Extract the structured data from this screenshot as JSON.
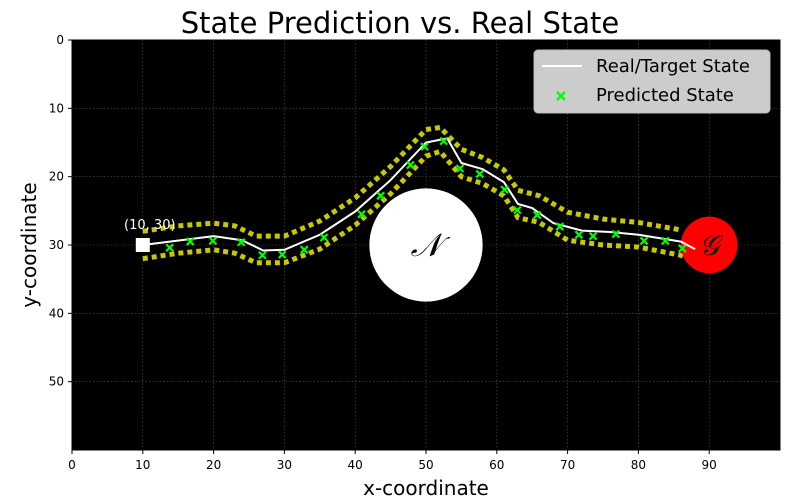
{
  "chart_data": {
    "type": "line",
    "title": "State Prediction vs. Real State",
    "xlabel": "x-coordinate",
    "ylabel": "y-coordinate",
    "xlim": [
      0,
      100
    ],
    "ylim": [
      60,
      0
    ],
    "x_ticks": [
      0,
      10,
      20,
      30,
      40,
      50,
      60,
      70,
      80,
      90
    ],
    "y_ticks": [
      0,
      10,
      20,
      30,
      40,
      50
    ],
    "grid": true,
    "legend": "top-right",
    "background": "#000000",
    "series": [
      {
        "name": "Real/Target State",
        "kind": "line",
        "color": "#ffffff",
        "x": [
          10,
          20,
          24,
          27,
          30,
          35,
          40,
          45,
          50,
          53,
          55,
          58,
          61,
          63,
          65,
          68,
          72,
          76,
          80,
          86,
          88
        ],
        "y": [
          30,
          28.7,
          29.3,
          30.8,
          30.7,
          28.5,
          25.1,
          20.5,
          15.0,
          14.4,
          18.0,
          18.9,
          20.8,
          24.0,
          24.6,
          26.8,
          27.9,
          28.1,
          28.5,
          29.5,
          30.6
        ]
      },
      {
        "name": "Predicted State",
        "kind": "scatter",
        "color": "#00ff00",
        "marker": "x",
        "x": [
          13.8,
          16.7,
          19.9,
          23.9,
          26.9,
          29.7,
          32.8,
          35.6,
          40.9,
          43.6,
          47.8,
          49.8,
          52.5,
          54.8,
          57.6,
          61.1,
          62.9,
          65.7,
          68.9,
          71.6,
          73.6,
          76.8,
          80.8,
          83.8,
          86.2
        ],
        "y": [
          30.4,
          29.5,
          29.4,
          29.6,
          31.5,
          31.4,
          30.7,
          28.9,
          25.5,
          22.8,
          18.3,
          15.6,
          14.8,
          18.8,
          19.6,
          21.9,
          24.9,
          25.6,
          27.3,
          28.5,
          28.7,
          28.4,
          29.4,
          29.4,
          30.5
        ]
      }
    ],
    "uncertainty_bounds": {
      "color": "#c8c800",
      "style": "dotted",
      "upper": {
        "x": [
          10,
          15,
          20,
          23,
          26,
          30,
          35,
          40,
          45,
          50,
          52,
          55,
          58,
          61,
          63,
          66,
          70,
          75,
          80,
          86
        ],
        "y": [
          28,
          27.2,
          26.8,
          27.2,
          28.7,
          28.7,
          26.5,
          23.1,
          18.5,
          13.1,
          12.8,
          16.0,
          17.2,
          19.0,
          22.0,
          22.8,
          25.2,
          26.2,
          26.7,
          27.8
        ]
      },
      "lower": {
        "x": [
          10,
          15,
          20,
          23,
          26,
          30,
          35,
          40,
          45,
          50,
          52,
          55,
          58,
          61,
          63,
          66,
          70,
          75,
          80,
          86,
          87.5
        ],
        "y": [
          32,
          31.2,
          30.7,
          31.2,
          32.6,
          32.6,
          30.6,
          27.1,
          22.5,
          17.0,
          16.3,
          20.0,
          21.0,
          22.8,
          26.0,
          26.7,
          29.3,
          30.0,
          30.3,
          31.5,
          32.3
        ]
      }
    },
    "start": {
      "x": 10,
      "y": 30,
      "label": "(10, 30)",
      "color": "#ffffff"
    },
    "obstacle": {
      "x": 50,
      "y": 30,
      "radius": 8,
      "label": "𝒩",
      "color": "#ffffff"
    },
    "goal": {
      "x": 90,
      "y": 30,
      "radius": 4,
      "label": "𝒢",
      "color": "#ff0000"
    }
  }
}
